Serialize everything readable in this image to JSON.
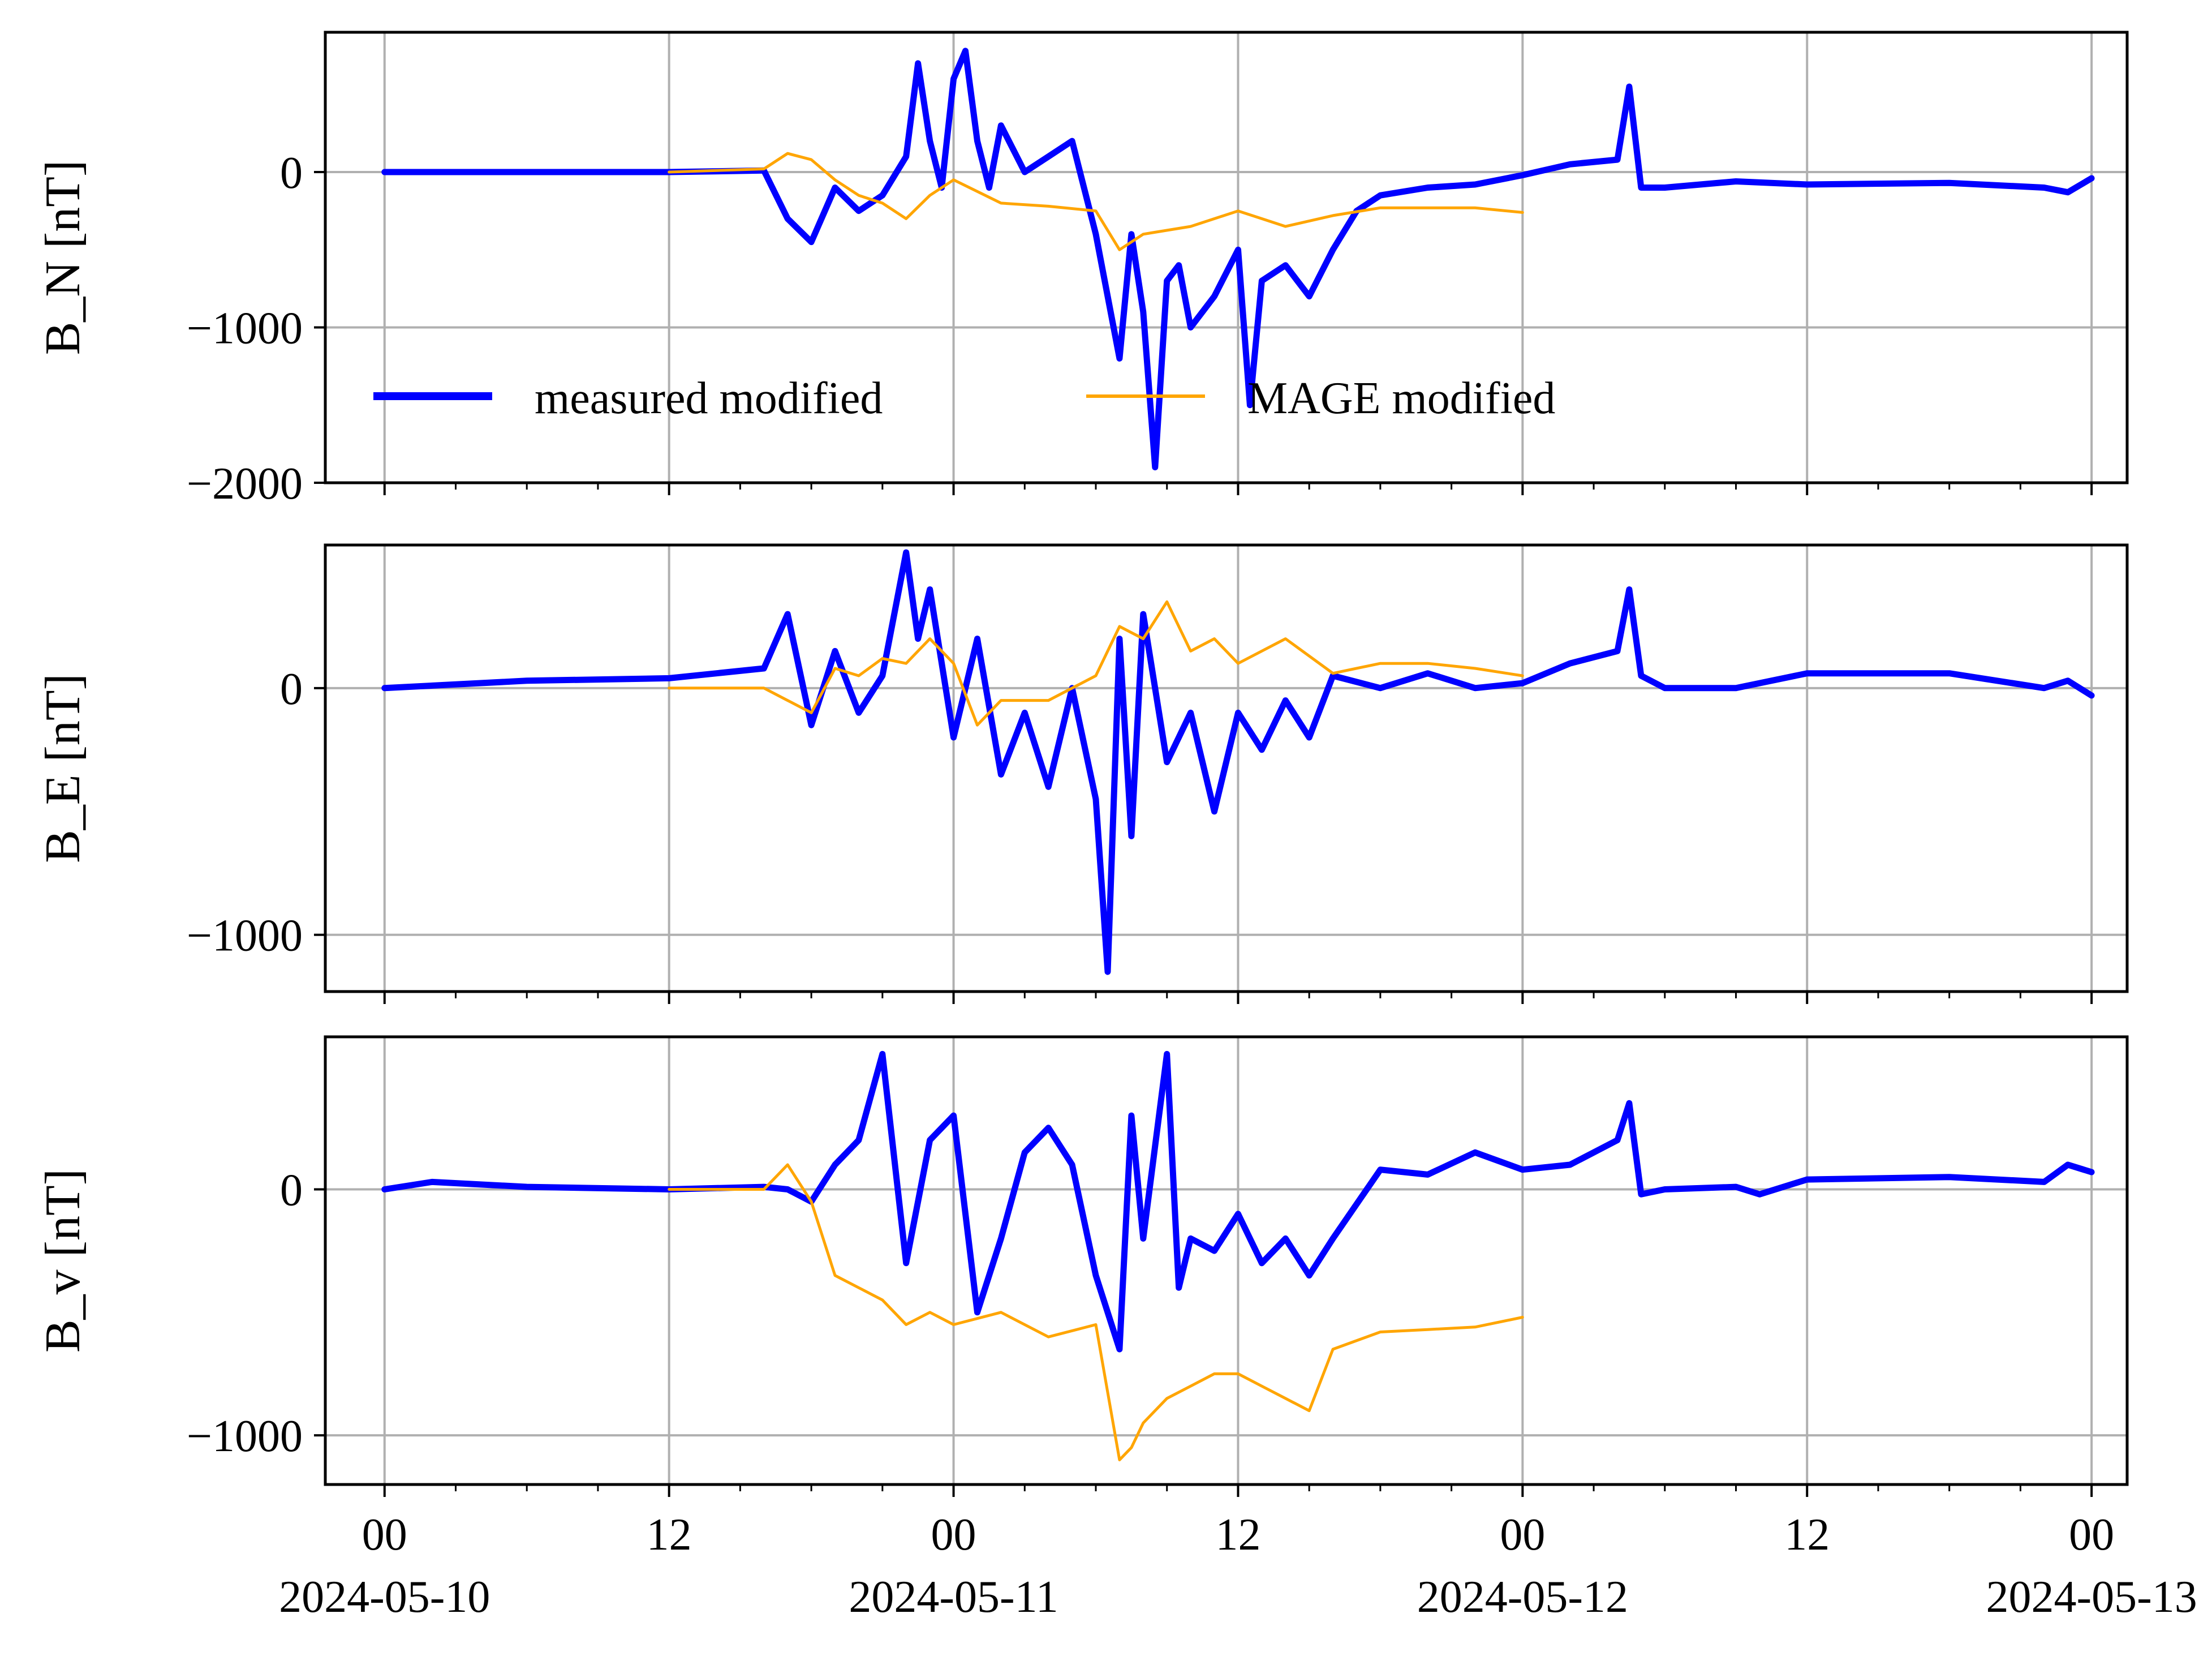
{
  "colors": {
    "measured": "#0000ff",
    "mage": "#ffa500",
    "grid": "#b0b0b0",
    "axes": "#000000"
  },
  "chart_data": [
    {
      "type": "line",
      "id": "panel-bn",
      "ylabel": "B_N [nT]",
      "ylim": [
        -2000,
        900
      ],
      "yticks": [
        0,
        -1000,
        -2000
      ],
      "ytick_labels": [
        "0",
        "−1000",
        "−2000"
      ],
      "grid": true,
      "legend": {
        "placement": "lower-left",
        "columns": 2
      },
      "series": [
        {
          "name": "measured modified",
          "color_key": "measured",
          "x": [
            "2024-05-10 00:00",
            "2024-05-10 06:00",
            "2024-05-10 12:00",
            "2024-05-10 16:00",
            "2024-05-10 17:00",
            "2024-05-10 18:00",
            "2024-05-10 19:00",
            "2024-05-10 20:00",
            "2024-05-10 21:00",
            "2024-05-10 22:00",
            "2024-05-10 22:30",
            "2024-05-10 23:00",
            "2024-05-10 23:30",
            "2024-05-11 00:00",
            "2024-05-11 00:30",
            "2024-05-11 01:00",
            "2024-05-11 01:30",
            "2024-05-11 02:00",
            "2024-05-11 03:00",
            "2024-05-11 04:00",
            "2024-05-11 05:00",
            "2024-05-11 06:00",
            "2024-05-11 07:00",
            "2024-05-11 07:30",
            "2024-05-11 08:00",
            "2024-05-11 08:30",
            "2024-05-11 09:00",
            "2024-05-11 09:30",
            "2024-05-11 10:00",
            "2024-05-11 11:00",
            "2024-05-11 12:00",
            "2024-05-11 12:30",
            "2024-05-11 13:00",
            "2024-05-11 14:00",
            "2024-05-11 15:00",
            "2024-05-11 16:00",
            "2024-05-11 17:00",
            "2024-05-11 18:00",
            "2024-05-11 20:00",
            "2024-05-11 22:00",
            "2024-05-12 00:00",
            "2024-05-12 02:00",
            "2024-05-12 04:00",
            "2024-05-12 04:30",
            "2024-05-12 05:00",
            "2024-05-12 06:00",
            "2024-05-12 09:00",
            "2024-05-12 12:00",
            "2024-05-12 18:00",
            "2024-05-12 22:00",
            "2024-05-12 23:00",
            "2024-05-13 00:00"
          ],
          "y": [
            0,
            0,
            0,
            10,
            -300,
            -450,
            -100,
            -250,
            -150,
            100,
            700,
            200,
            -100,
            600,
            780,
            200,
            -100,
            300,
            0,
            100,
            200,
            -400,
            -1200,
            -400,
            -900,
            -1900,
            -700,
            -600,
            -1000,
            -800,
            -500,
            -1500,
            -700,
            -600,
            -800,
            -500,
            -250,
            -150,
            -100,
            -80,
            -20,
            50,
            80,
            550,
            -100,
            -100,
            -60,
            -80,
            -70,
            -100,
            -130,
            -40
          ]
        },
        {
          "name": "MAGE modified",
          "color_key": "mage",
          "x": [
            "2024-05-10 12:00",
            "2024-05-10 16:00",
            "2024-05-10 17:00",
            "2024-05-10 18:00",
            "2024-05-10 19:00",
            "2024-05-10 20:00",
            "2024-05-10 21:00",
            "2024-05-10 22:00",
            "2024-05-10 23:00",
            "2024-05-11 00:00",
            "2024-05-11 02:00",
            "2024-05-11 04:00",
            "2024-05-11 06:00",
            "2024-05-11 07:00",
            "2024-05-11 08:00",
            "2024-05-11 10:00",
            "2024-05-11 12:00",
            "2024-05-11 13:00",
            "2024-05-11 14:00",
            "2024-05-11 16:00",
            "2024-05-11 18:00",
            "2024-05-11 20:00",
            "2024-05-11 22:00",
            "2024-05-12 00:00"
          ],
          "y": [
            0,
            20,
            120,
            80,
            -50,
            -150,
            -200,
            -300,
            -150,
            -50,
            -200,
            -220,
            -250,
            -500,
            -400,
            -350,
            -250,
            -300,
            -350,
            -280,
            -230,
            -230,
            -230,
            -260
          ]
        }
      ]
    },
    {
      "type": "line",
      "id": "panel-be",
      "ylabel": "B_E [nT]",
      "ylim": [
        -1230,
        580
      ],
      "yticks": [
        0,
        -1000
      ],
      "ytick_labels": [
        "0",
        "−1000"
      ],
      "grid": true,
      "series": [
        {
          "name": "measured modified",
          "color_key": "measured",
          "x": [
            "2024-05-10 00:00",
            "2024-05-10 06:00",
            "2024-05-10 12:00",
            "2024-05-10 16:00",
            "2024-05-10 17:00",
            "2024-05-10 18:00",
            "2024-05-10 19:00",
            "2024-05-10 20:00",
            "2024-05-10 21:00",
            "2024-05-10 22:00",
            "2024-05-10 22:30",
            "2024-05-10 23:00",
            "2024-05-11 00:00",
            "2024-05-11 01:00",
            "2024-05-11 02:00",
            "2024-05-11 03:00",
            "2024-05-11 04:00",
            "2024-05-11 05:00",
            "2024-05-11 06:00",
            "2024-05-11 06:30",
            "2024-05-11 07:00",
            "2024-05-11 07:30",
            "2024-05-11 08:00",
            "2024-05-11 09:00",
            "2024-05-11 10:00",
            "2024-05-11 11:00",
            "2024-05-11 12:00",
            "2024-05-11 13:00",
            "2024-05-11 14:00",
            "2024-05-11 15:00",
            "2024-05-11 16:00",
            "2024-05-11 18:00",
            "2024-05-11 20:00",
            "2024-05-11 22:00",
            "2024-05-12 00:00",
            "2024-05-12 02:00",
            "2024-05-12 04:00",
            "2024-05-12 04:30",
            "2024-05-12 05:00",
            "2024-05-12 06:00",
            "2024-05-12 09:00",
            "2024-05-12 12:00",
            "2024-05-12 18:00",
            "2024-05-12 22:00",
            "2024-05-12 23:00",
            "2024-05-13 00:00"
          ],
          "y": [
            0,
            30,
            40,
            80,
            300,
            -150,
            150,
            -100,
            50,
            550,
            200,
            400,
            -200,
            200,
            -350,
            -100,
            -400,
            0,
            -450,
            -1150,
            200,
            -600,
            300,
            -300,
            -100,
            -500,
            -100,
            -250,
            -50,
            -200,
            50,
            0,
            60,
            0,
            20,
            100,
            150,
            400,
            50,
            0,
            0,
            60,
            60,
            0,
            30,
            -30
          ]
        },
        {
          "name": "MAGE modified",
          "color_key": "mage",
          "x": [
            "2024-05-10 12:00",
            "2024-05-10 16:00",
            "2024-05-10 17:00",
            "2024-05-10 18:00",
            "2024-05-10 19:00",
            "2024-05-10 20:00",
            "2024-05-10 21:00",
            "2024-05-10 22:00",
            "2024-05-10 23:00",
            "2024-05-11 00:00",
            "2024-05-11 01:00",
            "2024-05-11 02:00",
            "2024-05-11 04:00",
            "2024-05-11 06:00",
            "2024-05-11 07:00",
            "2024-05-11 08:00",
            "2024-05-11 09:00",
            "2024-05-11 10:00",
            "2024-05-11 11:00",
            "2024-05-11 12:00",
            "2024-05-11 14:00",
            "2024-05-11 16:00",
            "2024-05-11 18:00",
            "2024-05-11 20:00",
            "2024-05-11 22:00",
            "2024-05-12 00:00"
          ],
          "y": [
            0,
            0,
            -50,
            -100,
            80,
            50,
            120,
            100,
            200,
            100,
            -150,
            -50,
            -50,
            50,
            250,
            200,
            350,
            150,
            200,
            100,
            200,
            60,
            100,
            100,
            80,
            50
          ]
        }
      ]
    },
    {
      "type": "line",
      "id": "panel-bv",
      "ylabel": "B_v [nT]",
      "ylim": [
        -1200,
        620
      ],
      "yticks": [
        0,
        -1000
      ],
      "ytick_labels": [
        "0",
        "−1000"
      ],
      "grid": true,
      "xticks": [
        "2024-05-10 00:00",
        "2024-05-10 12:00",
        "2024-05-11 00:00",
        "2024-05-11 12:00",
        "2024-05-12 00:00",
        "2024-05-12 12:00",
        "2024-05-13 00:00"
      ],
      "xtick_hours": [
        "00",
        "12",
        "00",
        "12",
        "00",
        "12",
        "00"
      ],
      "xtick_dates": [
        "2024-05-10",
        "",
        "2024-05-11",
        "",
        "2024-05-12",
        "",
        "2024-05-13"
      ],
      "series": [
        {
          "name": "measured modified",
          "color_key": "measured",
          "x": [
            "2024-05-10 00:00",
            "2024-05-10 02:00",
            "2024-05-10 06:00",
            "2024-05-10 12:00",
            "2024-05-10 16:00",
            "2024-05-10 17:00",
            "2024-05-10 18:00",
            "2024-05-10 19:00",
            "2024-05-10 20:00",
            "2024-05-10 21:00",
            "2024-05-10 22:00",
            "2024-05-10 23:00",
            "2024-05-11 00:00",
            "2024-05-11 01:00",
            "2024-05-11 02:00",
            "2024-05-11 03:00",
            "2024-05-11 04:00",
            "2024-05-11 05:00",
            "2024-05-11 06:00",
            "2024-05-11 07:00",
            "2024-05-11 07:30",
            "2024-05-11 08:00",
            "2024-05-11 09:00",
            "2024-05-11 09:30",
            "2024-05-11 10:00",
            "2024-05-11 11:00",
            "2024-05-11 12:00",
            "2024-05-11 13:00",
            "2024-05-11 14:00",
            "2024-05-11 15:00",
            "2024-05-11 16:00",
            "2024-05-11 18:00",
            "2024-05-11 20:00",
            "2024-05-11 22:00",
            "2024-05-12 00:00",
            "2024-05-12 02:00",
            "2024-05-12 04:00",
            "2024-05-12 04:30",
            "2024-05-12 05:00",
            "2024-05-12 06:00",
            "2024-05-12 09:00",
            "2024-05-12 10:00",
            "2024-05-12 12:00",
            "2024-05-12 18:00",
            "2024-05-12 22:00",
            "2024-05-12 23:00",
            "2024-05-13 00:00"
          ],
          "y": [
            0,
            30,
            10,
            0,
            10,
            0,
            -50,
            100,
            200,
            550,
            -300,
            200,
            300,
            -500,
            -200,
            150,
            250,
            100,
            -350,
            -650,
            300,
            -200,
            550,
            -400,
            -200,
            -250,
            -100,
            -300,
            -200,
            -350,
            -200,
            80,
            60,
            150,
            80,
            100,
            200,
            350,
            -20,
            0,
            10,
            -20,
            40,
            50,
            30,
            100,
            70
          ]
        },
        {
          "name": "MAGE modified",
          "color_key": "mage",
          "x": [
            "2024-05-10 12:00",
            "2024-05-10 16:00",
            "2024-05-10 17:00",
            "2024-05-10 18:00",
            "2024-05-10 19:00",
            "2024-05-10 20:00",
            "2024-05-10 21:00",
            "2024-05-10 22:00",
            "2024-05-10 23:00",
            "2024-05-11 00:00",
            "2024-05-11 02:00",
            "2024-05-11 04:00",
            "2024-05-11 06:00",
            "2024-05-11 07:00",
            "2024-05-11 07:30",
            "2024-05-11 08:00",
            "2024-05-11 09:00",
            "2024-05-11 10:00",
            "2024-05-11 11:00",
            "2024-05-11 12:00",
            "2024-05-11 13:00",
            "2024-05-11 14:00",
            "2024-05-11 15:00",
            "2024-05-11 16:00",
            "2024-05-11 18:00",
            "2024-05-11 20:00",
            "2024-05-11 22:00",
            "2024-05-12 00:00"
          ],
          "y": [
            0,
            0,
            100,
            -50,
            -350,
            -400,
            -450,
            -550,
            -500,
            -550,
            -500,
            -600,
            -550,
            -1100,
            -1050,
            -950,
            -850,
            -800,
            -750,
            -750,
            -800,
            -850,
            -900,
            -650,
            -580,
            -570,
            -560,
            -520
          ]
        }
      ]
    }
  ]
}
